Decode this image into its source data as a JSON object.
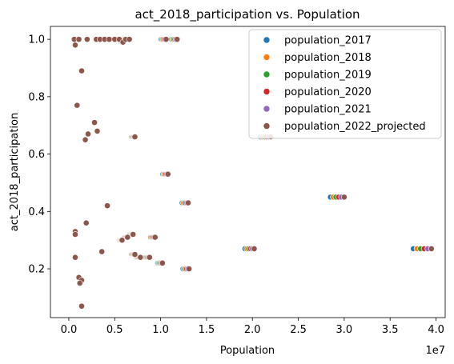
{
  "chart_data": {
    "type": "scatter",
    "title": "act_2018_participation vs. Population",
    "xlabel": "Population",
    "ylabel": "act_2018_participation",
    "x_offset_text": "1e7",
    "xlim": [
      -0.2,
      4.1
    ],
    "ylim": [
      0.03,
      1.045
    ],
    "x_unit_note": "x values are in units of 1e7",
    "x_ticks": [
      0.0,
      0.5,
      1.0,
      1.5,
      2.0,
      2.5,
      3.0,
      3.5,
      4.0
    ],
    "x_tick_labels": [
      "0.0",
      "0.5",
      "1.0",
      "1.5",
      "2.0",
      "2.5",
      "3.0",
      "3.5",
      "4.0"
    ],
    "y_ticks": [
      0.2,
      0.4,
      0.6,
      0.8,
      1.0
    ],
    "y_tick_labels": [
      "0.2",
      "0.4",
      "0.6",
      "0.8",
      "1.0"
    ],
    "grid": false,
    "legend_position": "top-right",
    "base_points": [
      {
        "x": 0.06,
        "y": 1.0
      },
      {
        "x": 0.07,
        "y": 0.98
      },
      {
        "x": 0.11,
        "y": 1.0
      },
      {
        "x": 0.2,
        "y": 1.0
      },
      {
        "x": 0.3,
        "y": 1.0
      },
      {
        "x": 0.34,
        "y": 1.0
      },
      {
        "x": 0.39,
        "y": 1.0
      },
      {
        "x": 0.44,
        "y": 1.0
      },
      {
        "x": 0.5,
        "y": 1.0
      },
      {
        "x": 0.55,
        "y": 1.0
      },
      {
        "x": 0.59,
        "y": 0.99
      },
      {
        "x": 0.62,
        "y": 1.0
      },
      {
        "x": 0.66,
        "y": 1.0
      },
      {
        "x": 1.06,
        "y": 1.0
      },
      {
        "x": 1.18,
        "y": 1.0
      },
      {
        "x": 0.14,
        "y": 0.89
      },
      {
        "x": 0.09,
        "y": 0.77
      },
      {
        "x": 0.28,
        "y": 0.71
      },
      {
        "x": 0.21,
        "y": 0.67
      },
      {
        "x": 0.31,
        "y": 0.68
      },
      {
        "x": 0.18,
        "y": 0.65
      },
      {
        "x": 0.72,
        "y": 0.66
      },
      {
        "x": 1.08,
        "y": 0.53
      },
      {
        "x": 1.3,
        "y": 0.43
      },
      {
        "x": 0.42,
        "y": 0.42
      },
      {
        "x": 0.19,
        "y": 0.36
      },
      {
        "x": 0.07,
        "y": 0.33
      },
      {
        "x": 0.07,
        "y": 0.32
      },
      {
        "x": 0.58,
        "y": 0.3
      },
      {
        "x": 0.64,
        "y": 0.31
      },
      {
        "x": 0.94,
        "y": 0.31
      },
      {
        "x": 0.7,
        "y": 0.32
      },
      {
        "x": 0.36,
        "y": 0.26
      },
      {
        "x": 0.72,
        "y": 0.25
      },
      {
        "x": 0.07,
        "y": 0.24
      },
      {
        "x": 0.78,
        "y": 0.24
      },
      {
        "x": 0.88,
        "y": 0.24
      },
      {
        "x": 1.02,
        "y": 0.22
      },
      {
        "x": 1.31,
        "y": 0.2
      },
      {
        "x": 0.11,
        "y": 0.17
      },
      {
        "x": 0.14,
        "y": 0.16
      },
      {
        "x": 0.12,
        "y": 0.15
      },
      {
        "x": 0.14,
        "y": 0.07
      },
      {
        "x": 2.2,
        "y": 0.66
      },
      {
        "x": 3.0,
        "y": 0.45
      },
      {
        "x": 3.95,
        "y": 0.27
      },
      {
        "x": 2.02,
        "y": 0.27
      }
    ],
    "series": [
      {
        "name": "population_2017",
        "color": "#1f77b4",
        "x_scale": 0.95
      },
      {
        "name": "population_2018",
        "color": "#ff7f0e",
        "x_scale": 0.96
      },
      {
        "name": "population_2019",
        "color": "#2ca02c",
        "x_scale": 0.97
      },
      {
        "name": "population_2020",
        "color": "#d62728",
        "x_scale": 0.98
      },
      {
        "name": "population_2021",
        "color": "#9467bd",
        "x_scale": 0.99
      },
      {
        "name": "population_2022_projected",
        "color": "#8c564b",
        "x_scale": 1.0
      }
    ]
  }
}
